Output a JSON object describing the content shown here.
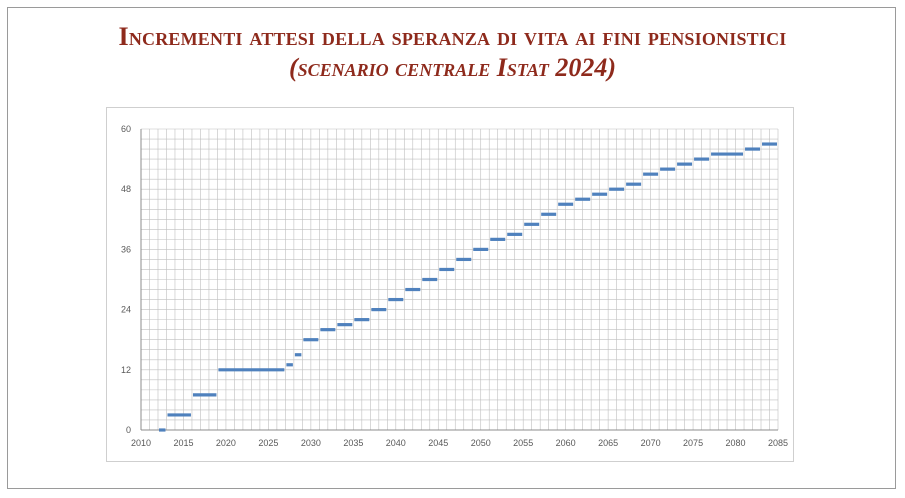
{
  "header": {
    "title_line1": "Incrementi attesi della speranza di vita ai fini pensionistici",
    "title_line2": "(scenario centrale Istat 2024)"
  },
  "colors": {
    "title": "#8e2a1c",
    "series": "#4f81bd",
    "grid": "#bfbfbf",
    "border": "#9a9a9a"
  },
  "chart_data": {
    "type": "line",
    "xlim": [
      2010,
      2085
    ],
    "ylim": [
      0,
      60
    ],
    "x_ticks": [
      2010,
      2015,
      2020,
      2025,
      2030,
      2035,
      2040,
      2045,
      2050,
      2055,
      2060,
      2065,
      2070,
      2075,
      2080,
      2085
    ],
    "y_ticks": [
      0,
      12,
      24,
      36,
      48,
      60
    ],
    "x_tick_labels": [
      "2010",
      "2015",
      "2020",
      "2025",
      "2030",
      "2035",
      "2040",
      "2045",
      "2050",
      "2055",
      "2060",
      "2065",
      "2070",
      "2075",
      "2080",
      "2085"
    ],
    "y_tick_labels": [
      "0",
      "12",
      "24",
      "36",
      "48",
      "60"
    ],
    "grid": true,
    "legend": "none",
    "series": [
      {
        "segments": [
          {
            "x_start": 2012,
            "x_end": 2013,
            "value": 0
          },
          {
            "x_start": 2013,
            "x_end": 2016,
            "value": 3
          },
          {
            "x_start": 2016,
            "x_end": 2019,
            "value": 7
          },
          {
            "x_start": 2019,
            "x_end": 2027,
            "value": 12
          },
          {
            "x_start": 2027,
            "x_end": 2028,
            "value": 13
          },
          {
            "x_start": 2028,
            "x_end": 2029,
            "value": 15
          },
          {
            "x_start": 2029,
            "x_end": 2031,
            "value": 18
          },
          {
            "x_start": 2031,
            "x_end": 2033,
            "value": 20
          },
          {
            "x_start": 2033,
            "x_end": 2035,
            "value": 21
          },
          {
            "x_start": 2035,
            "x_end": 2037,
            "value": 22
          },
          {
            "x_start": 2037,
            "x_end": 2039,
            "value": 24
          },
          {
            "x_start": 2039,
            "x_end": 2041,
            "value": 26
          },
          {
            "x_start": 2041,
            "x_end": 2043,
            "value": 28
          },
          {
            "x_start": 2043,
            "x_end": 2045,
            "value": 30
          },
          {
            "x_start": 2045,
            "x_end": 2047,
            "value": 32
          },
          {
            "x_start": 2047,
            "x_end": 2049,
            "value": 34
          },
          {
            "x_start": 2049,
            "x_end": 2051,
            "value": 36
          },
          {
            "x_start": 2051,
            "x_end": 2053,
            "value": 38
          },
          {
            "x_start": 2053,
            "x_end": 2055,
            "value": 39
          },
          {
            "x_start": 2055,
            "x_end": 2057,
            "value": 41
          },
          {
            "x_start": 2057,
            "x_end": 2059,
            "value": 43
          },
          {
            "x_start": 2059,
            "x_end": 2061,
            "value": 45
          },
          {
            "x_start": 2061,
            "x_end": 2063,
            "value": 46
          },
          {
            "x_start": 2063,
            "x_end": 2065,
            "value": 47
          },
          {
            "x_start": 2065,
            "x_end": 2067,
            "value": 48
          },
          {
            "x_start": 2067,
            "x_end": 2069,
            "value": 49
          },
          {
            "x_start": 2069,
            "x_end": 2071,
            "value": 51
          },
          {
            "x_start": 2071,
            "x_end": 2073,
            "value": 52
          },
          {
            "x_start": 2073,
            "x_end": 2075,
            "value": 53
          },
          {
            "x_start": 2075,
            "x_end": 2077,
            "value": 54
          },
          {
            "x_start": 2077,
            "x_end": 2081,
            "value": 55
          },
          {
            "x_start": 2081,
            "x_end": 2083,
            "value": 56
          },
          {
            "x_start": 2083,
            "x_end": 2085,
            "value": 57
          }
        ]
      }
    ]
  }
}
